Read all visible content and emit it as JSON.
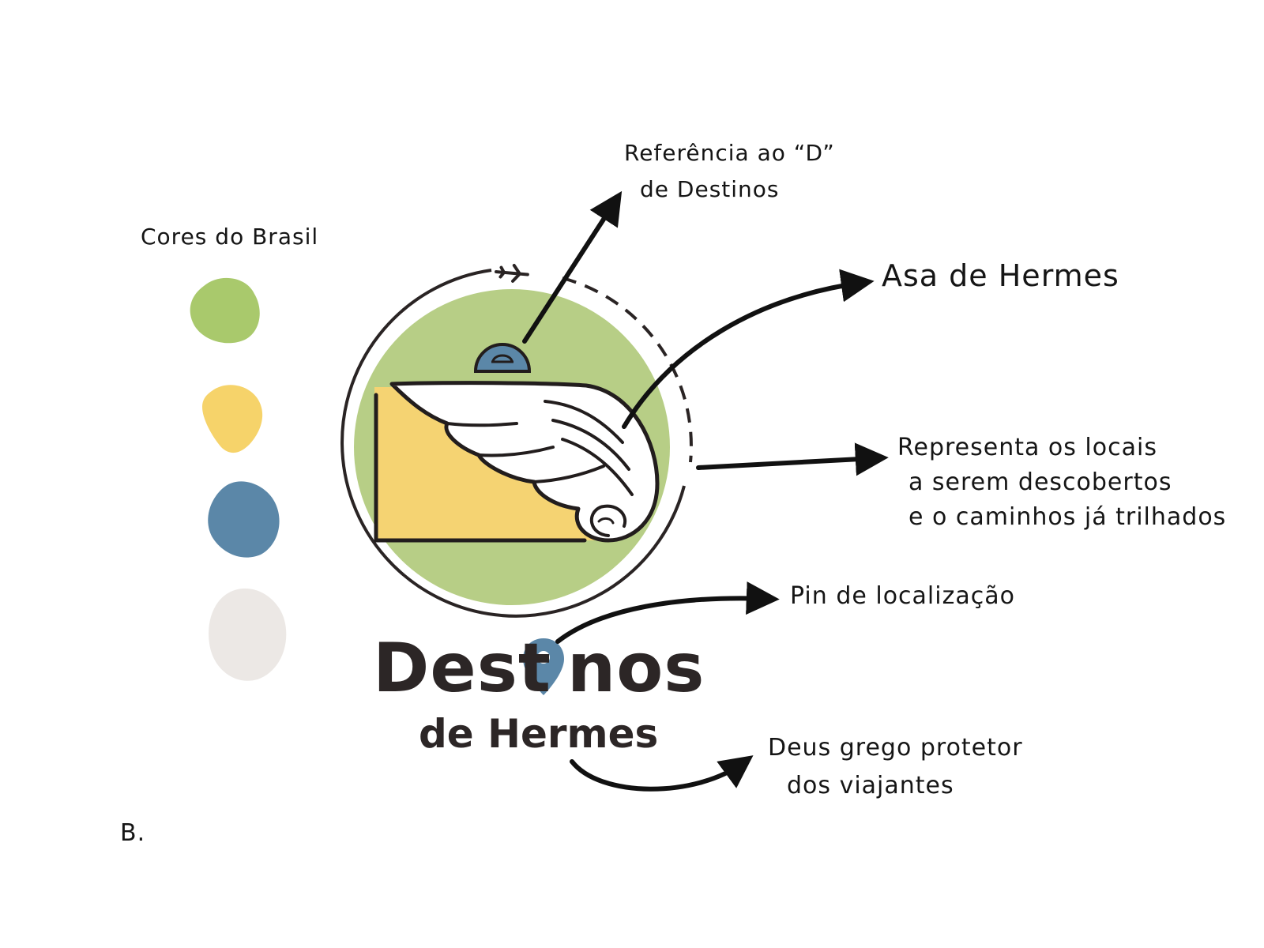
{
  "palette": {
    "title": "Cores do Brasil",
    "swatches": [
      {
        "name": "green",
        "color": "#A9C96C"
      },
      {
        "name": "yellow",
        "color": "#F6D36A"
      },
      {
        "name": "blue",
        "color": "#5B87A8"
      },
      {
        "name": "off-white",
        "color": "#ECE8E5"
      }
    ]
  },
  "colors": {
    "ink": "#151515",
    "logo_green": "#B7CE86",
    "logo_yellow": "#F5D372",
    "logo_blue": "#5B87A8",
    "wing_white": "#FFFFFF",
    "brand_text": "#2C2626"
  },
  "annotations": {
    "d_reference": [
      "Referência ao “D”",
      "de Destinos"
    ],
    "wing": "Asa de Hermes",
    "places": [
      "Representa os locais",
      "a serem descobertos",
      "e o caminhos já trilhados"
    ],
    "pin": "Pin de localização",
    "god": [
      "Deus grego protetor",
      "dos viajantes"
    ]
  },
  "logo": {
    "word_left": "Dest",
    "word_right": "nos",
    "subtitle": "de Hermes"
  },
  "corner_label": "B."
}
